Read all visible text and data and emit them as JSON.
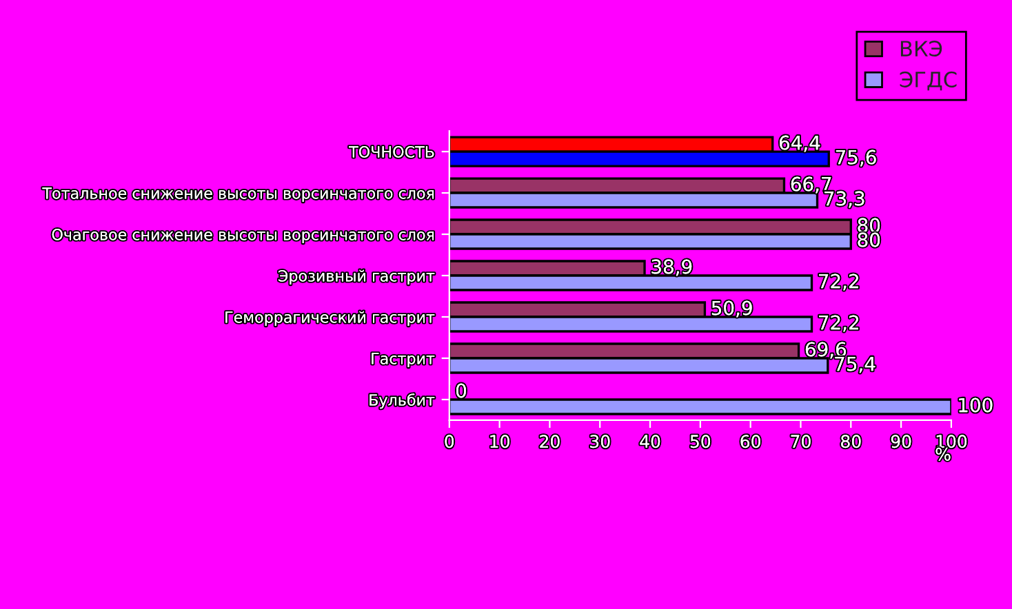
{
  "chart_data": {
    "type": "bar",
    "orientation": "horizontal",
    "xlabel": "%",
    "categories": [
      "ТОЧНОСТЬ",
      "Тотальное снижение высоты ворсинчатого слоя",
      "Очаговое снижение высоты ворсинчатого слоя",
      "Эрозивный гастрит",
      "Геморрагический гастрит",
      "Гастрит",
      "Бульбит"
    ],
    "series": [
      {
        "name": "ВКЭ",
        "color": "#993366",
        "colors": [
          "#ff0000",
          "#993366",
          "#993366",
          "#993366",
          "#993366",
          "#993366",
          "#993366"
        ],
        "values": [
          64.4,
          66.7,
          80,
          38.9,
          50.9,
          69.6,
          0
        ],
        "value_labels": [
          "64,4",
          "66,7",
          "80",
          "38,9",
          "50,9",
          "69,6",
          "0"
        ]
      },
      {
        "name": "ЭГДС",
        "color": "#9999ff",
        "colors": [
          "#0000ff",
          "#9999ff",
          "#9999ff",
          "#9999ff",
          "#9999ff",
          "#9999ff",
          "#9999ff"
        ],
        "values": [
          75.6,
          73.3,
          80,
          72.2,
          72.2,
          75.4,
          100
        ],
        "value_labels": [
          "75,6",
          "73,3",
          "80",
          "72,2",
          "72,2",
          "75,4",
          "100"
        ]
      }
    ],
    "xlim": [
      0,
      100
    ],
    "xticks": [
      0,
      10,
      20,
      30,
      40,
      50,
      60,
      70,
      80,
      90,
      100
    ],
    "grid": false,
    "legend": "top right"
  }
}
